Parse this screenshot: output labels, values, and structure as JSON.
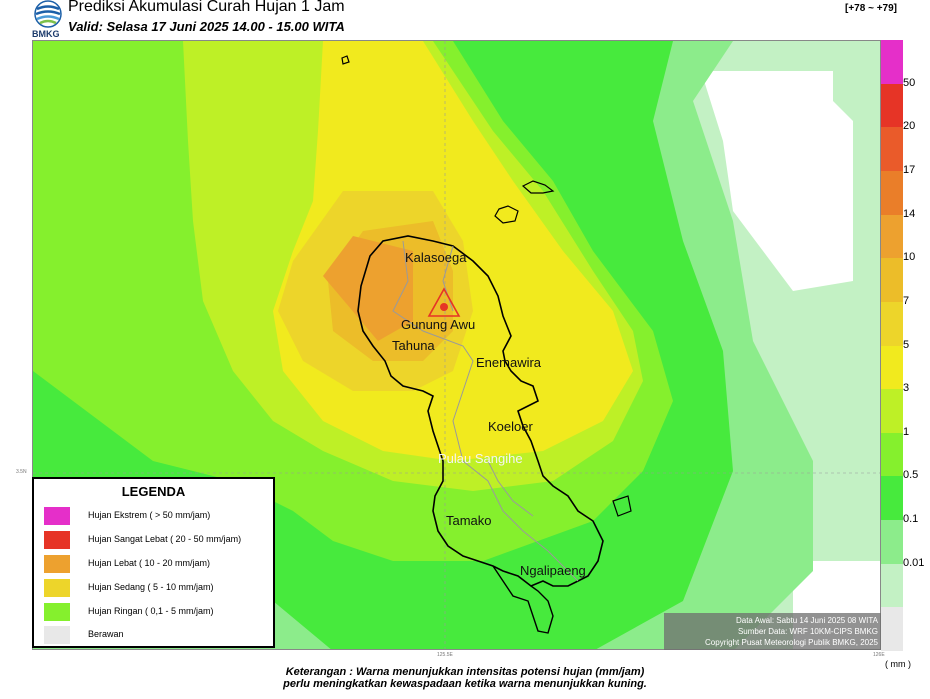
{
  "header": {
    "title": "Prediksi Akumulasi Curah Hujan 1 Jam",
    "subtitle": "Valid: Selasa 17 Juni 2025 14.00 - 15.00 WITA",
    "utc_offset": "[+78 ~ +79]",
    "logo_text": "BMKG"
  },
  "colorbar": {
    "unit": "( mm )",
    "labels": [
      "50",
      "20",
      "17",
      "14",
      "10",
      "7",
      "5",
      "3",
      "1",
      "0.5",
      "0.1",
      "0.01"
    ],
    "colors": [
      "#e52fc9",
      "#e63426",
      "#ea5b2a",
      "#ea7e29",
      "#eda12f",
      "#ecbd29",
      "#edd52a",
      "#f1ea1e",
      "#bef026",
      "#85f02d",
      "#47ea3d",
      "#8cec8b",
      "#c3f1c4",
      "#e8e8e8"
    ]
  },
  "legend": {
    "title": "LEGENDA",
    "items": [
      {
        "label": "Hujan Ekstrem ( > 50 mm/jam)",
        "color": "#e52fc9"
      },
      {
        "label": "Hujan Sangat Lebat ( 20 - 50 mm/jam)",
        "color": "#e63426"
      },
      {
        "label": "Hujan Lebat ( 10 - 20 mm/jam)",
        "color": "#eda12f"
      },
      {
        "label": "Hujan Sedang ( 5 - 10 mm/jam)",
        "color": "#edd52a"
      },
      {
        "label": "Hujan Ringan ( 0,1 - 5 mm/jam)",
        "color": "#85f02d"
      },
      {
        "label": "Berawan",
        "color": "#e8e8e8"
      }
    ]
  },
  "places": {
    "kalasoega": "Kalasoega",
    "gunung_awu": "Gunung Awu",
    "tahuna": "Tahuna",
    "enemawira": "Enemawira",
    "koeloer": "Koeloer",
    "pulau_sangihe": "Pulau Sangihe",
    "tamako": "Tamako",
    "ngalipaeng": "Ngalipaeng"
  },
  "ticks": {
    "lat": "3.5N",
    "lon1": "125.5E",
    "lon2": "126E"
  },
  "source": {
    "line1": "Data Awal: Sabtu 14 Juni 2025 08 WITA",
    "line2": "Sumber Data: WRF 10KM-CIPS BMKG",
    "line3": "Copyright Pusat Meteorologi Publik BMKG, 2025"
  },
  "footnote": {
    "line1": "Keterangan : Warna menunjukkan intensitas potensi hujan (mm/jam)",
    "line2": "perlu meningkatkan kewaspadaan ketika warna menunjukkan kuning."
  }
}
